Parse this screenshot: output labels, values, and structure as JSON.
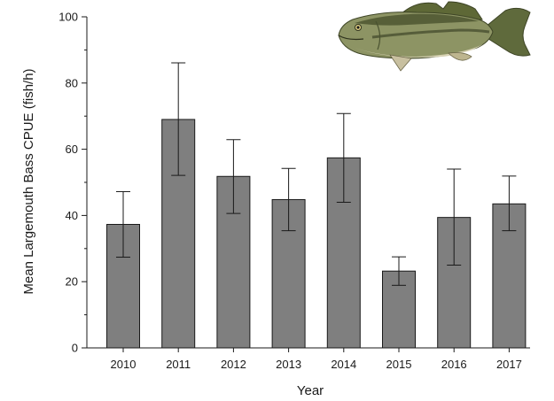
{
  "chart_data": {
    "type": "bar",
    "title": "",
    "xlabel": "Year",
    "ylabel": "Mean Largemouth Bass CPUE (fish/h)",
    "categories": [
      "2010",
      "2011",
      "2012",
      "2013",
      "2014",
      "2015",
      "2016",
      "2017"
    ],
    "values": [
      37.3,
      69.0,
      51.8,
      44.8,
      57.4,
      23.2,
      39.4,
      43.5
    ],
    "error_low": [
      27.4,
      52.1,
      40.6,
      35.4,
      44.0,
      18.9,
      25.0,
      35.4
    ],
    "error_high": [
      47.2,
      86.1,
      62.9,
      54.2,
      70.8,
      27.5,
      54.0,
      51.9
    ],
    "ylim": [
      0,
      100
    ],
    "yticks": [
      0,
      20,
      40,
      60,
      80,
      100
    ],
    "grid": false,
    "legend": "none",
    "bar_color": "#7f7f7f"
  },
  "decorations": {
    "image": "largemouth-bass-fish-illustration"
  }
}
